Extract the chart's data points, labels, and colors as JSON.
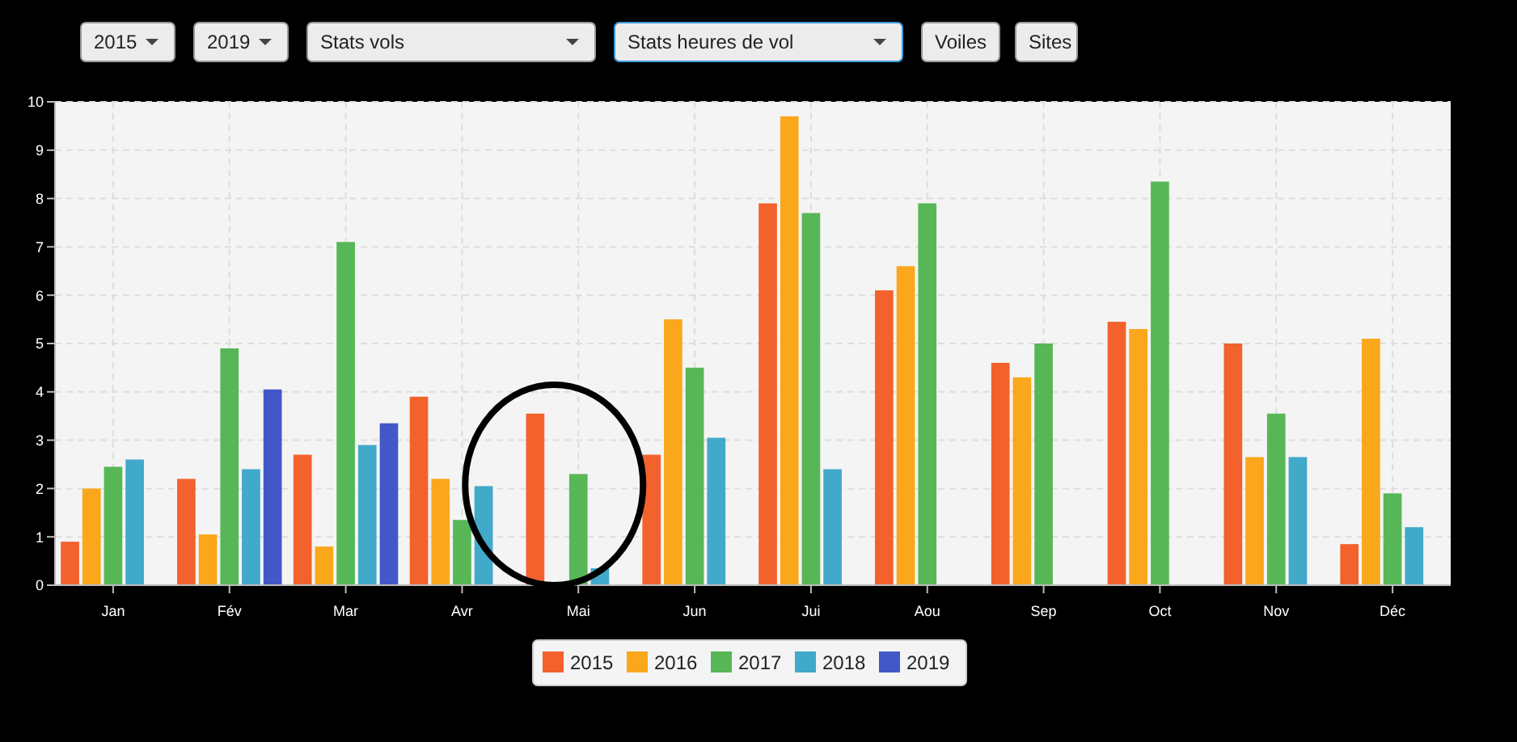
{
  "chart_data": {
    "type": "bar",
    "categories": [
      "Jan",
      "Fév",
      "Mar",
      "Avr",
      "Mai",
      "Jun",
      "Jui",
      "Aou",
      "Sep",
      "Oct",
      "Nov",
      "Déc"
    ],
    "series": [
      {
        "name": "2015",
        "color": "#f3622d",
        "values": [
          0.9,
          2.2,
          2.7,
          3.9,
          3.55,
          2.7,
          7.9,
          6.1,
          4.6,
          5.45,
          5.0,
          0.85
        ]
      },
      {
        "name": "2016",
        "color": "#fba71b",
        "values": [
          2.0,
          1.05,
          0.8,
          2.2,
          null,
          5.5,
          9.7,
          6.6,
          4.3,
          5.3,
          2.65,
          5.1
        ]
      },
      {
        "name": "2017",
        "color": "#57b757",
        "values": [
          2.45,
          4.9,
          7.1,
          1.35,
          2.3,
          4.5,
          7.7,
          7.9,
          5.0,
          8.35,
          3.55,
          1.9
        ]
      },
      {
        "name": "2018",
        "color": "#41a9c9",
        "values": [
          2.6,
          2.4,
          2.9,
          2.05,
          0.35,
          3.05,
          2.4,
          null,
          null,
          null,
          2.65,
          1.2
        ]
      },
      {
        "name": "2019",
        "color": "#4258c9",
        "values": [
          null,
          4.05,
          3.35,
          null,
          null,
          null,
          null,
          null,
          null,
          null,
          null,
          null
        ]
      }
    ],
    "ylim": [
      0,
      10
    ],
    "yticks": [
      0,
      1,
      2,
      3,
      4,
      5,
      6,
      7,
      8,
      9,
      10
    ],
    "grid": true,
    "legend": "bottom",
    "annotations": [
      "2015",
      "2019",
      "Stats vols",
      "Stats heures de vol",
      "Voiles",
      "Sites"
    ]
  }
}
